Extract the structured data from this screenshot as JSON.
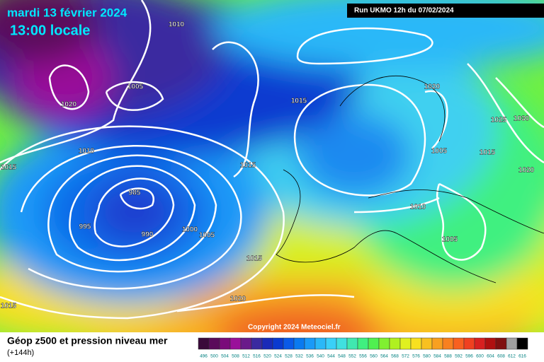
{
  "header": {
    "date": "mardi 13 février 2024",
    "time": "13:00 locale",
    "run": "Run UKMO 12h du 07/02/2024"
  },
  "copyright": "Copyright 2024 Meteociel.fr",
  "footer": {
    "title": "Géop z500 et pression niveau mer",
    "subtitle": "(+144h)"
  },
  "isobar_labels": [
    "1010",
    "1005",
    "1020",
    "1010",
    "1015",
    "985",
    "995",
    "990",
    "1000",
    "1005",
    "1015",
    "1015",
    "1015",
    "1020",
    "1015",
    "1020",
    "1025",
    "1030",
    "1005",
    "1015",
    "1020",
    "1010",
    "1005"
  ],
  "colorscale": {
    "labels": [
      "496",
      "500",
      "504",
      "508",
      "512",
      "516",
      "520",
      "524",
      "528",
      "532",
      "536",
      "540",
      "544",
      "548",
      "552",
      "556",
      "560",
      "564",
      "568",
      "572",
      "576",
      "580",
      "584",
      "588",
      "592",
      "596",
      "600",
      "604",
      "608",
      "612",
      "616"
    ],
    "colors": [
      "#3a0a3a",
      "#5a0a5a",
      "#7a0a7a",
      "#9a109a",
      "#6a1a8a",
      "#3a2aa0",
      "#1a2ab8",
      "#0a3ad0",
      "#0a5ae8",
      "#0a7af0",
      "#1a9af8",
      "#2ab8f8",
      "#3ad0f8",
      "#40e0e0",
      "#40e8b0",
      "#40f080",
      "#50f050",
      "#80f030",
      "#b0f020",
      "#e0f020",
      "#f8e020",
      "#f8c020",
      "#f8a020",
      "#f88020",
      "#f86020",
      "#f04020",
      "#d82020",
      "#b01010",
      "#801010",
      "#a0a0a0",
      "#000000"
    ]
  }
}
